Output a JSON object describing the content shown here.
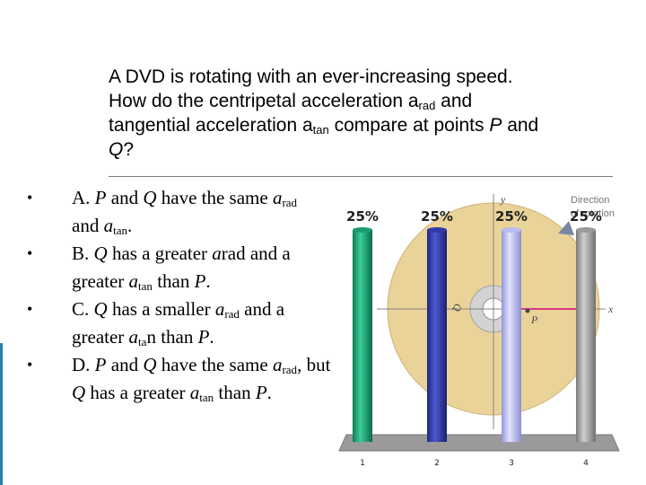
{
  "question": {
    "line1": "A DVD is rotating with an ever-increasing speed.",
    "line2_a": "How do the centripetal acceleration ",
    "a_symbol": "a",
    "sub_rad": "rad",
    "line2_b": " and",
    "line3_a": "tangential acceleration ",
    "sub_tan": "tan",
    "line3_b": " compare at points ",
    "point_p": "P",
    "and_word": " and",
    "point_q": "Q",
    "qmark": "?"
  },
  "options": [
    {
      "bullet": "•",
      "t1": "A. ",
      "i1": "P",
      "t2": " and ",
      "i2": "Q",
      "t3": " have the same ",
      "i3": "a",
      "s1": "rad",
      "t4": " and ",
      "i4": "a",
      "s2": "tan",
      "t5": "."
    },
    {
      "bullet": "•",
      "t1": "B. ",
      "i1": "Q",
      "t2": " has a greater ",
      "i2": "a",
      "t3": "rad and a greater ",
      "i3": "a",
      "s1": "tan",
      "t4": " than ",
      "i4": "P",
      "t5": "."
    },
    {
      "bullet": "•",
      "t1": "C. ",
      "i1": "Q",
      "t2": " has a smaller ",
      "i2": "a",
      "s1": "rad",
      "t3": " and a greater ",
      "i3": "a",
      "s2": "ta",
      "t4": "n than ",
      "i4": "P",
      "t5": "."
    },
    {
      "bullet": "•",
      "t1": "D. ",
      "i1": "P",
      "t2": " and ",
      "i2": "Q",
      "t3": " have the same ",
      "i3": "a",
      "s1": "rad",
      "t4": ", but ",
      "i4": "Q",
      "t5": " has a greater ",
      "i5": "a",
      "s2": "tan",
      "t6": " than ",
      "i6": "P",
      "t7": "."
    }
  ],
  "figure": {
    "axis_y": "y",
    "axis_x": "x",
    "direction_line1": "Direction",
    "direction_line2": "of rotation",
    "label_p": "P",
    "label_q": "Q",
    "disc_color": "#e8cf8e"
  },
  "chart_data": {
    "type": "bar",
    "categories": [
      "1",
      "2",
      "3",
      "4"
    ],
    "values": [
      25,
      25,
      25,
      25
    ],
    "value_labels": [
      "25%",
      "25%",
      "25%",
      "25%"
    ],
    "colors": [
      "#1a9e72",
      "#2f3aa6",
      "#b9bcf0",
      "#9a9a9a"
    ],
    "ylim": [
      0,
      100
    ],
    "title": "",
    "xlabel": "",
    "ylabel": ""
  }
}
